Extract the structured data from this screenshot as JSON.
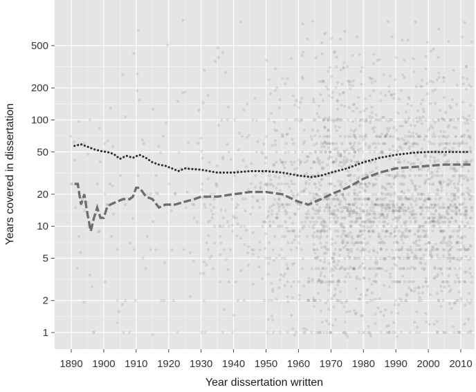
{
  "chart_data": {
    "type": "scatter",
    "title": "",
    "xlabel": "Year dissertation written",
    "ylabel": "Years covered in dissertation",
    "y_scale": "log",
    "grid": true,
    "xlim": [
      1885,
      2013
    ],
    "ylim": [
      0.8,
      1000
    ],
    "x_ticks": [
      1890,
      1900,
      1910,
      1920,
      1930,
      1940,
      1950,
      1960,
      1970,
      1980,
      1990,
      2000,
      2010
    ],
    "x_tick_labels": [
      "1890",
      "1900",
      "1910",
      "1920",
      "1930",
      "1940",
      "1950",
      "1960",
      "1970",
      "1980",
      "1990",
      "2000",
      "2010"
    ],
    "y_ticks": [
      1,
      2,
      5,
      10,
      20,
      50,
      100,
      200,
      500
    ],
    "y_tick_labels": [
      "1",
      "2",
      "5",
      "10",
      "20",
      "50",
      "100",
      "200",
      "500"
    ],
    "colors": {
      "panel_background": "#e5e5e5",
      "grid": "#ffffff",
      "points": "#555555",
      "dotted_series": "#333333",
      "dashed_series": "#6e6e6e"
    },
    "series": [
      {
        "style": "dotted",
        "x": [
          1891,
          1893,
          1895,
          1897,
          1899,
          1901,
          1903,
          1905,
          1907,
          1909,
          1911,
          1913,
          1915,
          1917,
          1919,
          1921,
          1923,
          1925,
          1930,
          1935,
          1940,
          1945,
          1950,
          1955,
          1960,
          1964,
          1967,
          1970,
          1975,
          1980,
          1985,
          1990,
          1995,
          2000,
          2005,
          2010,
          2013
        ],
        "y": [
          57,
          59,
          56,
          53,
          51,
          50,
          48,
          43,
          46,
          44,
          47,
          44,
          40,
          38,
          37,
          35,
          33,
          35,
          34,
          32,
          32,
          33,
          33,
          32,
          30,
          29,
          30,
          32,
          35,
          40,
          44,
          47,
          49,
          50,
          50,
          50,
          50
        ]
      },
      {
        "style": "dashed",
        "x": [
          1891,
          1892,
          1893,
          1894,
          1895,
          1896,
          1897,
          1898,
          1899,
          1900,
          1901,
          1902,
          1904,
          1906,
          1908,
          1909,
          1910,
          1911,
          1912,
          1913,
          1915,
          1917,
          1919,
          1922,
          1925,
          1928,
          1930,
          1935,
          1940,
          1945,
          1950,
          1955,
          1960,
          1963,
          1967,
          1970,
          1975,
          1980,
          1985,
          1990,
          1995,
          2000,
          2005,
          2010,
          2013
        ],
        "y": [
          25,
          25,
          16,
          20,
          13,
          9,
          12,
          15,
          12,
          12,
          15,
          16,
          17,
          18,
          18,
          19,
          23,
          23,
          21,
          19,
          18,
          15,
          16,
          16,
          17,
          18,
          19,
          19,
          20,
          21,
          21,
          20,
          17,
          16,
          18,
          20,
          23,
          28,
          32,
          35,
          36,
          37,
          38,
          38,
          38
        ]
      }
    ]
  }
}
